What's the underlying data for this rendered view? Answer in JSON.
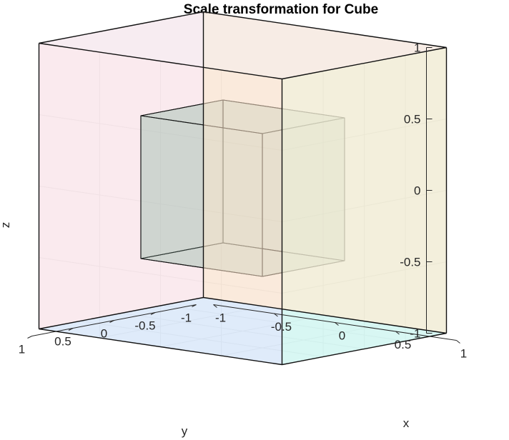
{
  "chart_data": {
    "type": "3d-surface",
    "title": "Scale transformation for Cube",
    "xlabel": "x",
    "ylabel": "y",
    "zlabel": "z",
    "xlim": [
      -1,
      1
    ],
    "ylim": [
      -1,
      1
    ],
    "zlim": [
      -1,
      1
    ],
    "grid": true,
    "x_ticks": [
      "-1",
      "-0.5",
      "0",
      "0.5",
      "1"
    ],
    "y_ticks": [
      "1",
      "0.5",
      "0",
      "-0.5",
      "-1"
    ],
    "z_ticks": [
      "-1",
      "-0.5",
      "0",
      "0.5",
      "1"
    ],
    "x_tick_values": [
      -1,
      -0.5,
      0,
      0.5,
      1
    ],
    "y_tick_values": [
      1,
      0.5,
      0,
      -0.5,
      -1
    ],
    "z_tick_values": [
      -1,
      -0.5,
      0,
      0.5,
      1
    ],
    "original_cube": {
      "min": [
        -1,
        -1,
        -1
      ],
      "max": [
        1,
        1,
        1
      ],
      "face_colors": {
        "x_min": "#ffe4e9",
        "x_max": "#cdfce9",
        "y_min": "#ffe3c9",
        "y_max": "#e6e3e7",
        "z_min": "#cde6ff",
        "z_max": "#e9e5ee"
      }
    },
    "scaled_cube": {
      "scale": 0.5,
      "min": [
        -0.5,
        -0.5,
        -0.5
      ],
      "max": [
        0.5,
        0.5,
        0.5
      ],
      "face_color": "#8fb8a3"
    }
  }
}
